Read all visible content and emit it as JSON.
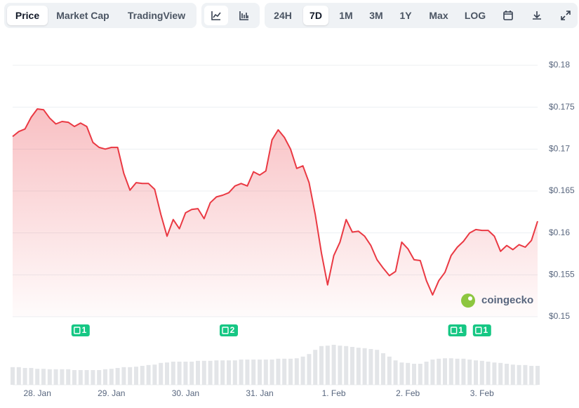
{
  "toolbar": {
    "tabs": [
      "Price",
      "Market Cap",
      "TradingView"
    ],
    "ranges": [
      "24H",
      "7D",
      "1M",
      "3M",
      "1Y",
      "Max",
      "LOG"
    ],
    "active_tab": "Price",
    "active_range": "7D"
  },
  "watermark": "coingecko",
  "chart_data": {
    "type": "line",
    "categories": [
      null,
      null,
      null,
      null,
      "28. Jan",
      null,
      null,
      null,
      null,
      null,
      null,
      null,
      null,
      null,
      null,
      null,
      "29. Jan",
      null,
      null,
      null,
      null,
      null,
      null,
      null,
      null,
      null,
      null,
      null,
      "30. Jan",
      null,
      null,
      null,
      null,
      null,
      null,
      null,
      null,
      null,
      null,
      null,
      "31. Jan",
      null,
      null,
      null,
      null,
      null,
      null,
      null,
      null,
      null,
      null,
      null,
      "1. Feb",
      null,
      null,
      null,
      null,
      null,
      null,
      null,
      null,
      null,
      null,
      null,
      "2. Feb",
      null,
      null,
      null,
      null,
      null,
      null,
      null,
      null,
      null,
      null,
      null,
      "3. Feb",
      null,
      null,
      null,
      null,
      null,
      null,
      null,
      null,
      null
    ],
    "series": [
      {
        "name": "Price",
        "color": "#ea3943",
        "values": [
          0.1715,
          0.1721,
          0.1724,
          0.1738,
          0.1748,
          0.1747,
          0.1737,
          0.173,
          0.1733,
          0.1732,
          0.1727,
          0.1731,
          0.1727,
          0.1708,
          0.1702,
          0.17,
          0.1702,
          0.1702,
          0.1671,
          0.1651,
          0.166,
          0.1659,
          0.1659,
          0.1652,
          0.1622,
          0.1596,
          0.1616,
          0.1605,
          0.1624,
          0.1628,
          0.1629,
          0.1617,
          0.1636,
          0.1643,
          0.1645,
          0.1648,
          0.1656,
          0.1659,
          0.1656,
          0.1673,
          0.1669,
          0.1674,
          0.1711,
          0.1723,
          0.1714,
          0.17,
          0.1677,
          0.168,
          0.166,
          0.1622,
          0.1576,
          0.1538,
          0.1573,
          0.1589,
          0.1616,
          0.1601,
          0.1602,
          0.1596,
          0.1585,
          0.1568,
          0.1558,
          0.1549,
          0.1554,
          0.1589,
          0.1581,
          0.1568,
          0.1567,
          0.1543,
          0.1526,
          0.1543,
          0.1553,
          0.1573,
          0.1583,
          0.159,
          0.16,
          0.1604,
          0.1603,
          0.1603,
          0.1596,
          0.1578,
          0.1585,
          0.158,
          0.1586,
          0.1583,
          0.1591,
          0.1614
        ]
      },
      {
        "name": "Volume",
        "color": "#e3e5e8",
        "axis": "y2",
        "values": [
          42,
          42,
          40,
          40,
          38,
          38,
          37,
          37,
          37,
          37,
          35,
          35,
          35,
          35,
          35,
          37,
          38,
          40,
          42,
          42,
          43,
          45,
          47,
          48,
          52,
          53,
          55,
          55,
          55,
          55,
          57,
          57,
          57,
          58,
          58,
          58,
          58,
          60,
          60,
          60,
          60,
          60,
          60,
          62,
          62,
          62,
          63,
          67,
          73,
          83,
          92,
          93,
          95,
          93,
          92,
          90,
          88,
          87,
          85,
          83,
          75,
          67,
          58,
          53,
          52,
          50,
          50,
          55,
          60,
          62,
          63,
          63,
          62,
          62,
          60,
          58,
          57,
          55,
          53,
          52,
          50,
          48,
          47,
          47,
          45,
          45
        ]
      }
    ],
    "ylim": [
      0.15,
      0.18
    ],
    "yticks": [
      {
        "value": 0.15,
        "label": "$0.15"
      },
      {
        "value": 0.155,
        "label": "$0.155"
      },
      {
        "value": 0.16,
        "label": "$0.16"
      },
      {
        "value": 0.165,
        "label": "$0.165"
      },
      {
        "value": 0.17,
        "label": "$0.17"
      },
      {
        "value": 0.175,
        "label": "$0.175"
      },
      {
        "value": 0.18,
        "label": "$0.18"
      }
    ],
    "y2lim": [
      0,
      100
    ],
    "grid": true,
    "events": [
      {
        "x": 11,
        "count": 1
      },
      {
        "x": 35,
        "count": 2
      },
      {
        "x": 72,
        "count": 1
      },
      {
        "x": 76,
        "count": 1
      }
    ]
  }
}
